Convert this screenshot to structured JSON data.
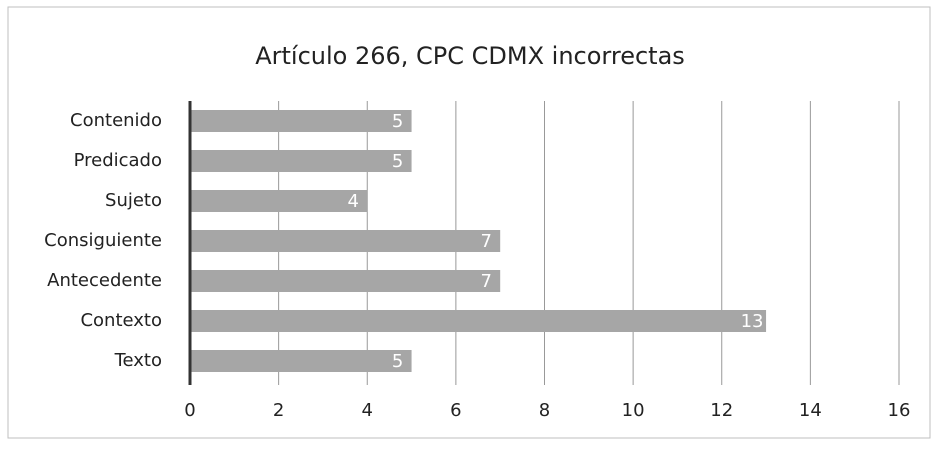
{
  "chart_data": {
    "type": "bar",
    "orientation": "horizontal",
    "title": "Artículo 266, CPC CDMX incorrectas",
    "categories": [
      "Contenido",
      "Predicado",
      "Sujeto",
      "Consiguiente",
      "Antecedente",
      "Contexto",
      "Texto"
    ],
    "values": [
      5,
      5,
      4,
      7,
      7,
      13,
      5
    ],
    "color": "#a6a6a6",
    "xlim": [
      0,
      16
    ],
    "xticks": [
      0,
      2,
      4,
      6,
      8,
      10,
      12,
      14,
      16
    ],
    "grid": true
  }
}
